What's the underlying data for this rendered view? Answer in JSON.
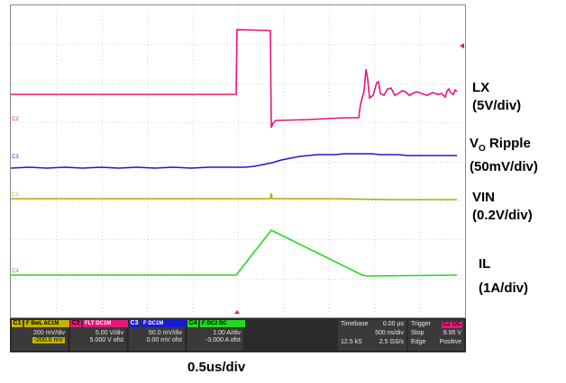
{
  "channels": [
    {
      "id": "C1",
      "name": "F BwL AC1M",
      "scale": "200 mV/div",
      "offset": "-200.0 mV",
      "color": "#b5a800"
    },
    {
      "id": "C2",
      "name": "FLT DC1M",
      "scale": "5.00 V/div",
      "offset": "5.000 V ofst",
      "color": "#e6167a"
    },
    {
      "id": "C3",
      "name": "F DC1M",
      "scale": "50.0 mV/div",
      "offset": "0.00 mV ofst",
      "color": "#1a1ad2"
    },
    {
      "id": "C4",
      "name": "F DC2 DC",
      "scale": "1.00 A/div",
      "offset": "-3.000 A ofst",
      "color": "#22d822"
    }
  ],
  "timebase": {
    "label": "Timebase",
    "delay": "0.00 µs",
    "per_div": "500 ns/div",
    "samples": "12.5 kS",
    "rate": "2.5 GS/s"
  },
  "trigger": {
    "label": "Trigger",
    "source": "C2 DC",
    "mode": "Stop",
    "level": "9.95 V",
    "type": "Edge",
    "slope": "Positive"
  },
  "side_labels": [
    {
      "line1": "LX",
      "line2": "(5V/div)"
    },
    {
      "line1": "VO Ripple",
      "line2": "(50mV/div)",
      "sub": "O"
    },
    {
      "line1": "VIN",
      "line2": "(0.2V/div)"
    },
    {
      "line1": "IL",
      "line2": "(1A/div)"
    }
  ],
  "time_scale_caption": "0.5us/div",
  "trace_labels": [
    "C2",
    "C3",
    "C1",
    "C4"
  ]
}
